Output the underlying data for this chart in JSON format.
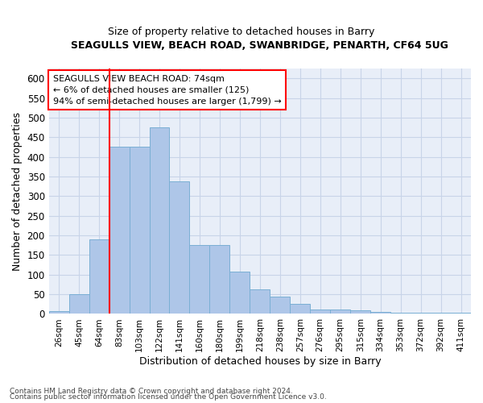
{
  "title": "SEAGULLS VIEW, BEACH ROAD, SWANBRIDGE, PENARTH, CF64 5UG",
  "subtitle": "Size of property relative to detached houses in Barry",
  "xlabel": "Distribution of detached houses by size in Barry",
  "ylabel": "Number of detached properties",
  "footer1": "Contains HM Land Registry data © Crown copyright and database right 2024.",
  "footer2": "Contains public sector information licensed under the Open Government Licence v3.0.",
  "categories": [
    "26sqm",
    "45sqm",
    "64sqm",
    "83sqm",
    "103sqm",
    "122sqm",
    "141sqm",
    "160sqm",
    "180sqm",
    "199sqm",
    "218sqm",
    "238sqm",
    "257sqm",
    "276sqm",
    "295sqm",
    "315sqm",
    "334sqm",
    "353sqm",
    "372sqm",
    "392sqm",
    "411sqm"
  ],
  "values": [
    7,
    50,
    190,
    425,
    425,
    475,
    338,
    175,
    175,
    108,
    62,
    45,
    25,
    12,
    12,
    9,
    5,
    4,
    4,
    4,
    4
  ],
  "bar_color": "#aec6e8",
  "bar_edge_color": "#7aafd4",
  "grid_color": "#c8d4e8",
  "background_color": "#e8eef8",
  "red_line_x": 2.5,
  "annotation_text": "SEAGULLS VIEW BEACH ROAD: 74sqm\n← 6% of detached houses are smaller (125)\n94% of semi-detached houses are larger (1,799) →",
  "ylim": [
    0,
    625
  ],
  "yticks": [
    0,
    50,
    100,
    150,
    200,
    250,
    300,
    350,
    400,
    450,
    500,
    550,
    600
  ]
}
